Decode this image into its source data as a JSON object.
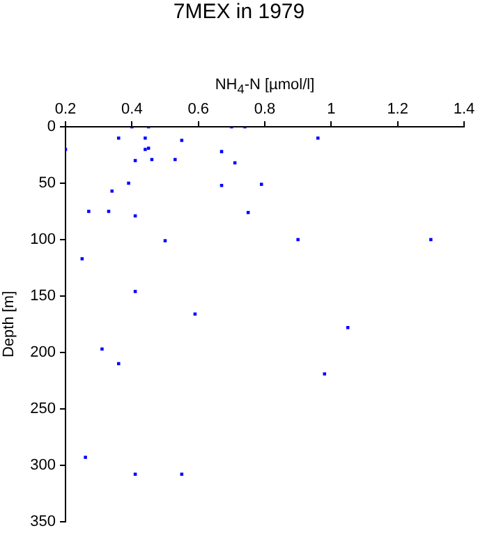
{
  "chart_data": {
    "type": "scatter",
    "title": "7MEX in 1979",
    "xlabel": "NH$_{4}$-N [µmol/l]",
    "ylabel": "Depth [m]",
    "x": [
      0.2,
      0.4,
      0.45,
      0.7,
      0.74,
      0.36,
      0.44,
      0.96,
      0.55,
      0.44,
      0.45,
      0.41,
      0.46,
      0.53,
      0.67,
      0.71,
      0.39,
      0.67,
      0.79,
      0.34,
      0.27,
      0.33,
      0.41,
      0.75,
      0.25,
      0.5,
      0.9,
      1.3,
      0.41,
      0.59,
      1.05,
      0.31,
      0.36,
      0.98,
      0.26,
      0.41,
      0.55
    ],
    "values": [
      20,
      0,
      0,
      0,
      0,
      10,
      10,
      10,
      12,
      20,
      19,
      30,
      29,
      29,
      22,
      32,
      50,
      52,
      51,
      57,
      75,
      75,
      79,
      76,
      117,
      101,
      100,
      100,
      146,
      166,
      178,
      197,
      210,
      219,
      293,
      308,
      308
    ],
    "color": "#0000ff",
    "marker": "square",
    "grid": false,
    "legend": false,
    "xlim": [
      0.2,
      1.4
    ],
    "xticks": [
      0.2,
      0.4,
      0.6,
      0.8,
      {
        "value": 1,
        "label": "1"
      },
      1.2,
      1.4
    ],
    "ylim": [
      350,
      0
    ],
    "yticks": [
      0,
      50,
      100,
      150,
      200,
      250,
      300,
      350
    ]
  }
}
